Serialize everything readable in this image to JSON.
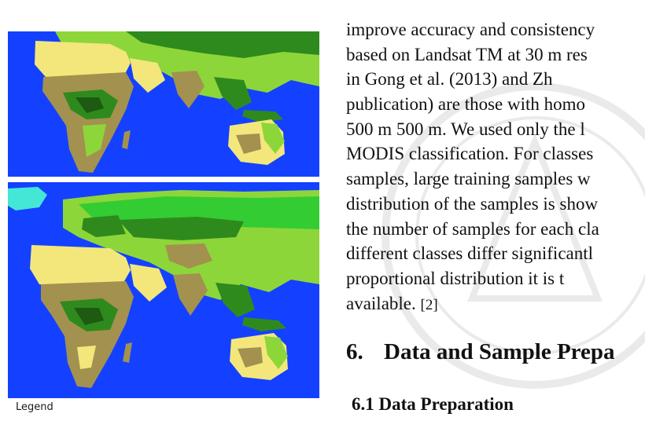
{
  "figure": {
    "legend_label": "Legend",
    "colors": {
      "ocean": "#1441ff",
      "desert": "#f3e77c",
      "grassland": "#8dd63a",
      "forest": "#2f8a1d",
      "dense_forest": "#1e5a12",
      "savanna": "#a3914f",
      "bright_green": "#33cc33",
      "ice": "#44e6d6"
    }
  },
  "body_text": {
    "lines": [
      "improve accuracy and consistency",
      "based on Landsat TM at 30 m res",
      "in Gong et al. (2013) and Zh",
      "publication) are those with homo",
      "500 m 500 m. We used only the l",
      "MODIS classification. For classes",
      "samples, large training samples w",
      "distribution of the samples is show",
      "the number of samples for each cla",
      "different classes differ significantl",
      "proportional distribution it is t",
      "available."
    ],
    "citation": "[2]"
  },
  "section_heading": {
    "number": "6.",
    "title": "Data and Sample Prepa"
  },
  "subsection_heading": "6.1 Data Preparation"
}
